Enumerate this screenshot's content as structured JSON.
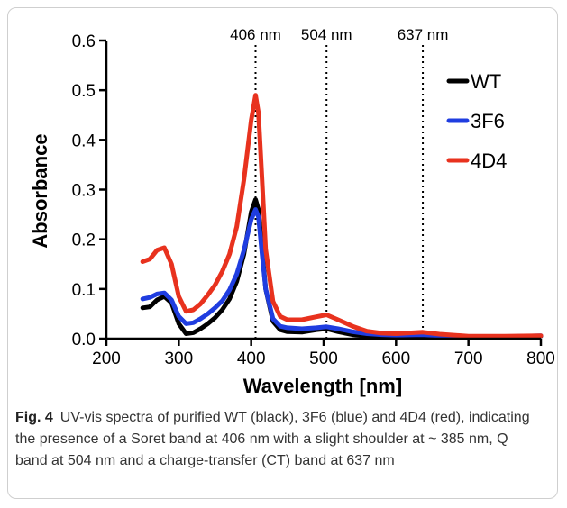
{
  "chart_data": {
    "type": "line",
    "xlabel": "Wavelength [nm]",
    "ylabel": "Absorbance",
    "xlim": [
      200,
      800
    ],
    "ylim": [
      0.0,
      0.6
    ],
    "xticks": [
      "200",
      "300",
      "400",
      "500",
      "600",
      "700",
      "800"
    ],
    "yticks": [
      "0.0",
      "0.1",
      "0.2",
      "0.3",
      "0.4",
      "0.5",
      "0.6"
    ],
    "legend_position": "right",
    "grid": false,
    "annotations": [
      {
        "label": "406 nm",
        "x": 406
      },
      {
        "label": "504 nm",
        "x": 504
      },
      {
        "label": "637 nm",
        "x": 637
      }
    ],
    "series": [
      {
        "name": "WT",
        "color": "#000000",
        "points": [
          [
            250,
            0.062
          ],
          [
            260,
            0.064
          ],
          [
            270,
            0.078
          ],
          [
            280,
            0.085
          ],
          [
            290,
            0.072
          ],
          [
            300,
            0.03
          ],
          [
            310,
            0.01
          ],
          [
            320,
            0.012
          ],
          [
            330,
            0.02
          ],
          [
            340,
            0.03
          ],
          [
            350,
            0.042
          ],
          [
            360,
            0.058
          ],
          [
            370,
            0.08
          ],
          [
            380,
            0.115
          ],
          [
            390,
            0.17
          ],
          [
            400,
            0.255
          ],
          [
            406,
            0.28
          ],
          [
            410,
            0.26
          ],
          [
            415,
            0.18
          ],
          [
            420,
            0.1
          ],
          [
            430,
            0.035
          ],
          [
            440,
            0.018
          ],
          [
            450,
            0.014
          ],
          [
            470,
            0.013
          ],
          [
            490,
            0.018
          ],
          [
            504,
            0.02
          ],
          [
            520,
            0.014
          ],
          [
            540,
            0.008
          ],
          [
            560,
            0.005
          ],
          [
            580,
            0.003
          ],
          [
            600,
            0.002
          ],
          [
            637,
            0.004
          ],
          [
            660,
            0.002
          ],
          [
            700,
            0.001
          ],
          [
            750,
            0.003
          ],
          [
            800,
            0.005
          ]
        ]
      },
      {
        "name": "3F6",
        "color": "#1f3de0",
        "points": [
          [
            250,
            0.08
          ],
          [
            260,
            0.083
          ],
          [
            270,
            0.09
          ],
          [
            280,
            0.092
          ],
          [
            290,
            0.078
          ],
          [
            300,
            0.045
          ],
          [
            310,
            0.03
          ],
          [
            320,
            0.032
          ],
          [
            330,
            0.04
          ],
          [
            340,
            0.05
          ],
          [
            350,
            0.062
          ],
          [
            360,
            0.076
          ],
          [
            370,
            0.098
          ],
          [
            380,
            0.13
          ],
          [
            390,
            0.178
          ],
          [
            400,
            0.24
          ],
          [
            406,
            0.26
          ],
          [
            410,
            0.245
          ],
          [
            415,
            0.17
          ],
          [
            420,
            0.1
          ],
          [
            430,
            0.04
          ],
          [
            440,
            0.025
          ],
          [
            450,
            0.022
          ],
          [
            470,
            0.02
          ],
          [
            490,
            0.022
          ],
          [
            504,
            0.024
          ],
          [
            520,
            0.02
          ],
          [
            540,
            0.014
          ],
          [
            560,
            0.01
          ],
          [
            580,
            0.008
          ],
          [
            600,
            0.007
          ],
          [
            637,
            0.008
          ],
          [
            660,
            0.006
          ],
          [
            700,
            0.003
          ],
          [
            750,
            0.004
          ],
          [
            800,
            0.006
          ]
        ]
      },
      {
        "name": "4D4",
        "color": "#e8321e",
        "points": [
          [
            250,
            0.155
          ],
          [
            260,
            0.16
          ],
          [
            270,
            0.178
          ],
          [
            280,
            0.183
          ],
          [
            290,
            0.15
          ],
          [
            300,
            0.085
          ],
          [
            310,
            0.055
          ],
          [
            320,
            0.058
          ],
          [
            330,
            0.07
          ],
          [
            340,
            0.088
          ],
          [
            350,
            0.108
          ],
          [
            360,
            0.135
          ],
          [
            370,
            0.17
          ],
          [
            380,
            0.225
          ],
          [
            390,
            0.32
          ],
          [
            400,
            0.44
          ],
          [
            406,
            0.49
          ],
          [
            410,
            0.455
          ],
          [
            415,
            0.32
          ],
          [
            420,
            0.18
          ],
          [
            430,
            0.075
          ],
          [
            440,
            0.045
          ],
          [
            450,
            0.038
          ],
          [
            470,
            0.038
          ],
          [
            490,
            0.044
          ],
          [
            504,
            0.048
          ],
          [
            520,
            0.038
          ],
          [
            540,
            0.025
          ],
          [
            560,
            0.015
          ],
          [
            580,
            0.011
          ],
          [
            600,
            0.01
          ],
          [
            637,
            0.013
          ],
          [
            660,
            0.009
          ],
          [
            700,
            0.005
          ],
          [
            750,
            0.005
          ],
          [
            800,
            0.006
          ]
        ]
      }
    ]
  },
  "caption": {
    "label": "Fig. 4",
    "text": "UV-vis spectra of purified WT (black), 3F6 (blue) and 4D4 (red), indicating the presence of a Soret band at 406 nm with a slight shoulder at ~ 385 nm, Q band at 504 nm and a charge-transfer (CT) band at 637 nm"
  }
}
